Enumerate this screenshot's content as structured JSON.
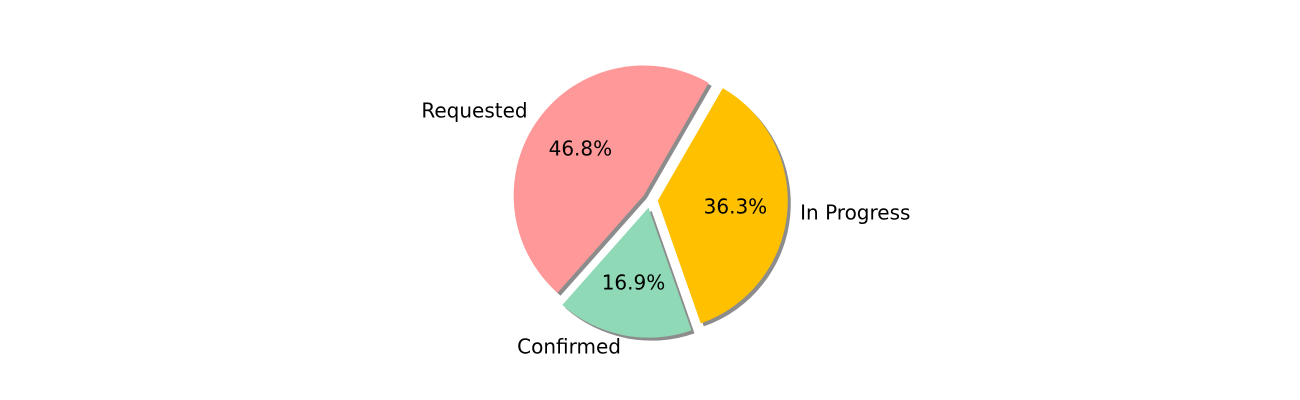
{
  "chart_data": {
    "type": "pie",
    "title": "",
    "categories": [
      "Requested",
      "Confirmed",
      "In Progress"
    ],
    "values": [
      46.8,
      16.9,
      36.3
    ],
    "labels": [
      "46.8%",
      "16.9%",
      "36.3%"
    ],
    "colors": [
      "#ff9999",
      "#8fd9b6",
      "#ffc000"
    ],
    "shadow": true,
    "exploded": true,
    "start_angle_deg": 60,
    "direction": "counterclockwise",
    "legend": "none"
  }
}
